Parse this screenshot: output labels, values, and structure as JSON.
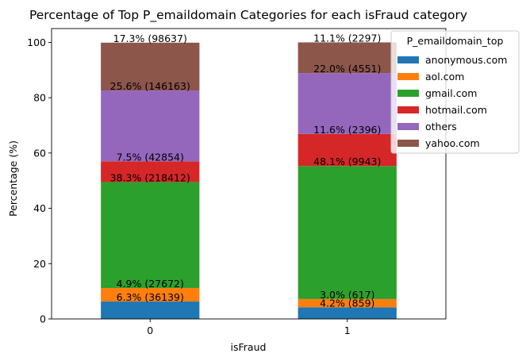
{
  "chart_data": {
    "type": "bar",
    "stacked": true,
    "title": "Percentage of Top P_emaildomain Categories for each isFraud category",
    "xlabel": "isFraud",
    "ylabel": "Percentage (%)",
    "categories": [
      "0",
      "1"
    ],
    "ylim": [
      0,
      105
    ],
    "yticks": [
      0,
      20,
      40,
      60,
      80,
      100
    ],
    "legend": {
      "title": "P_emaildomain_top",
      "position": "upper-right, partly outside plot"
    },
    "series": [
      {
        "name": "anonymous.com",
        "color": "#1f77b4",
        "values": [
          6.3,
          4.2
        ],
        "labels": [
          "6.3% (36139)",
          "4.2% (859)"
        ]
      },
      {
        "name": "aol.com",
        "color": "#ff7f0e",
        "values": [
          4.9,
          3.0
        ],
        "labels": [
          "4.9% (27672)",
          "3.0% (617)"
        ]
      },
      {
        "name": "gmail.com",
        "color": "#2ca02c",
        "values": [
          38.3,
          48.1
        ],
        "labels": [
          "38.3% (218412)",
          "48.1% (9943)"
        ]
      },
      {
        "name": "hotmail.com",
        "color": "#d62728",
        "values": [
          7.5,
          11.6
        ],
        "labels": [
          "7.5% (42854)",
          "11.6% (2396)"
        ]
      },
      {
        "name": "others",
        "color": "#9467bd",
        "values": [
          25.6,
          22.0
        ],
        "labels": [
          "25.6% (146163)",
          "22.0% (4551)"
        ]
      },
      {
        "name": "yahoo.com",
        "color": "#8c564b",
        "values": [
          17.3,
          11.1
        ],
        "labels": [
          "17.3% (98637)",
          "11.1% (2297)"
        ]
      }
    ]
  }
}
